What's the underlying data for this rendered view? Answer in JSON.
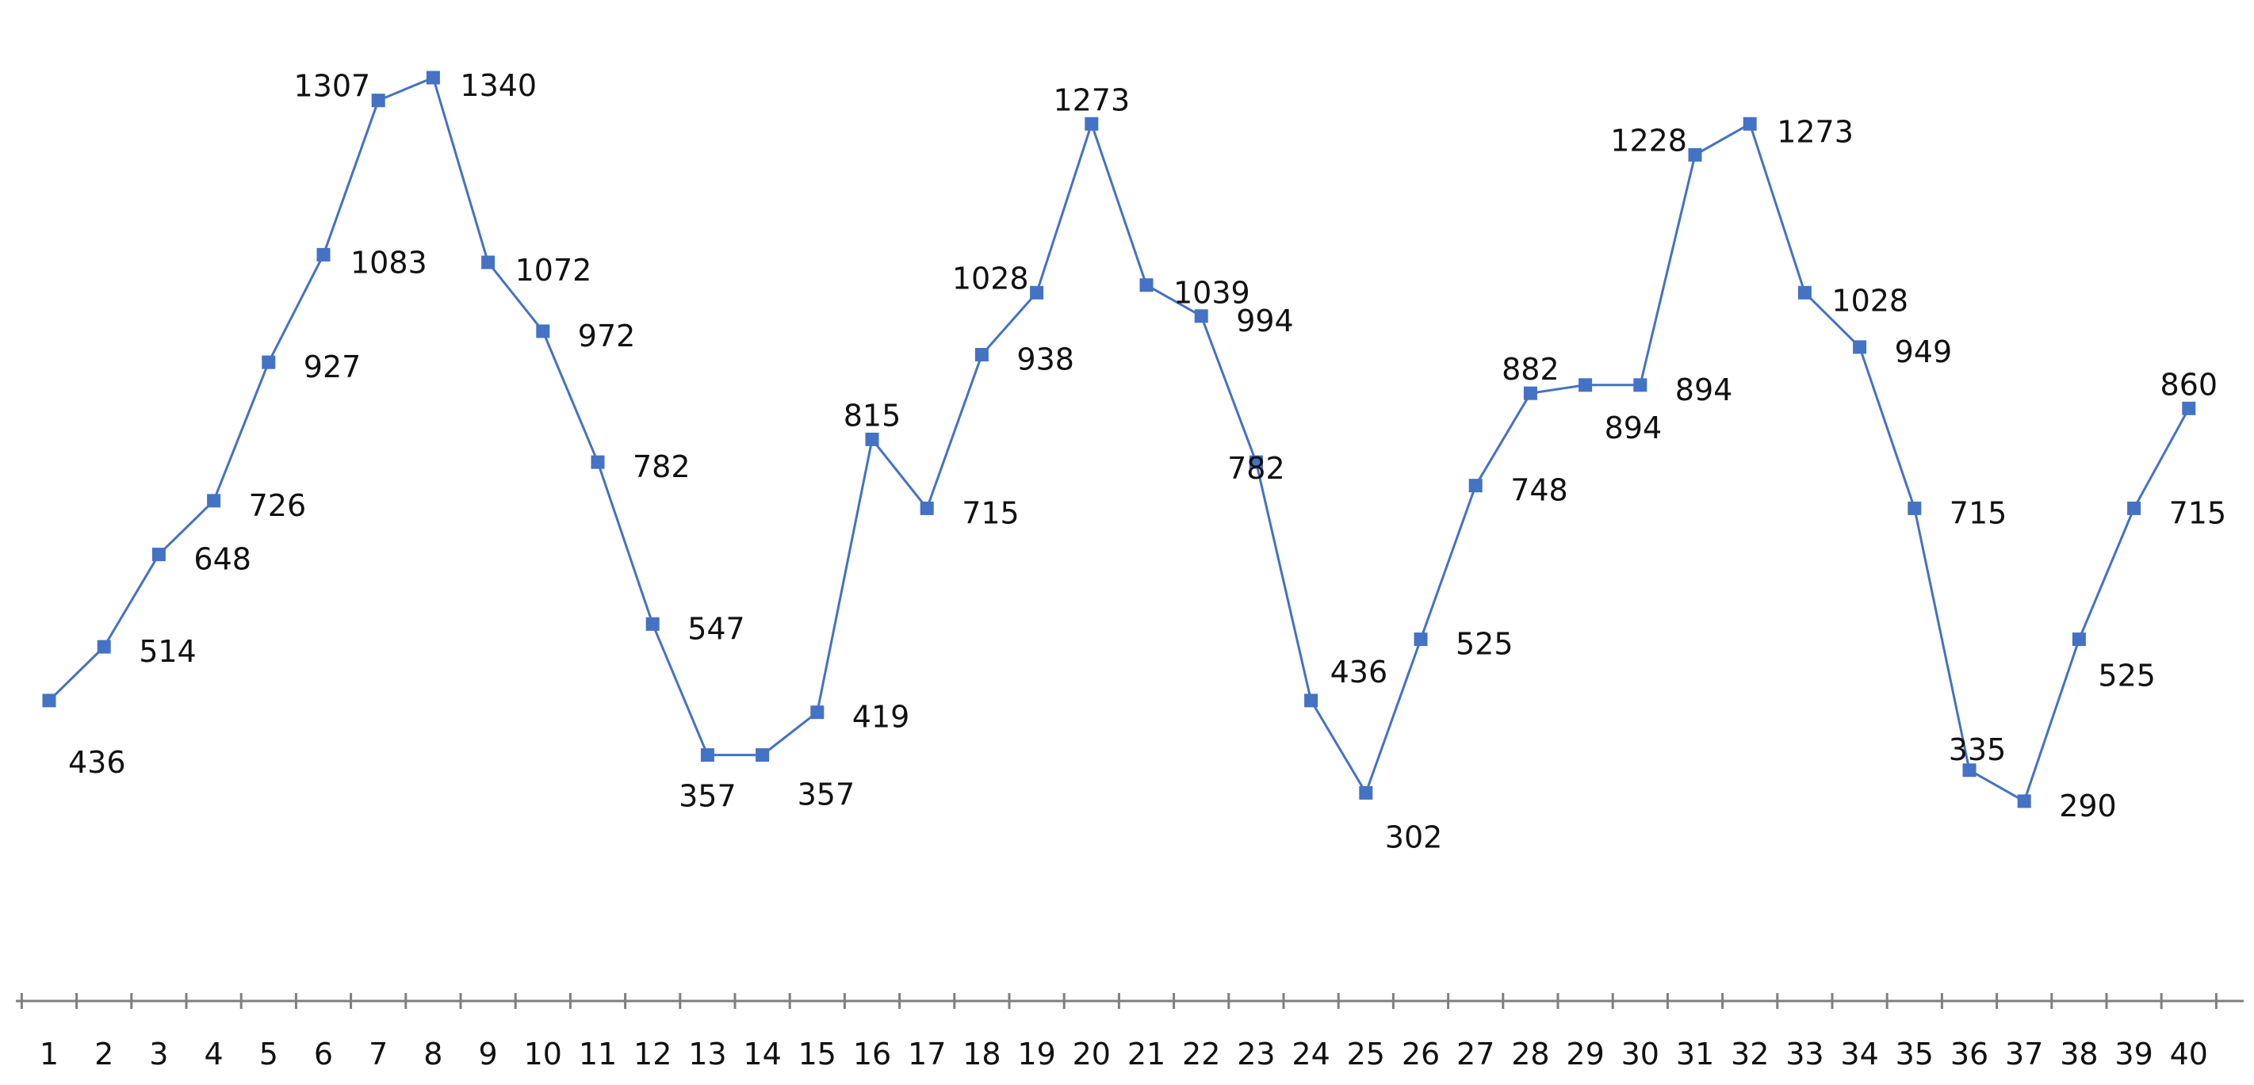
{
  "chart_data": {
    "type": "line",
    "title": "",
    "xlabel": "",
    "ylabel": "",
    "categories": [
      "1",
      "2",
      "3",
      "4",
      "5",
      "6",
      "7",
      "8",
      "9",
      "10",
      "11",
      "12",
      "13",
      "14",
      "15",
      "16",
      "17",
      "18",
      "19",
      "20",
      "21",
      "22",
      "23",
      "24",
      "25",
      "26",
      "27",
      "28",
      "29",
      "30",
      "31",
      "32",
      "33",
      "34",
      "35",
      "36",
      "37",
      "38",
      "39",
      "40"
    ],
    "series": [
      {
        "values": [
          436,
          514,
          648,
          726,
          927,
          1083,
          1307,
          1340,
          1072,
          972,
          782,
          547,
          357,
          357,
          419,
          815,
          715,
          938,
          1028,
          1273,
          1039,
          994,
          782,
          436,
          302,
          525,
          748,
          882,
          894,
          894,
          1228,
          1273,
          1028,
          949,
          715,
          335,
          290,
          525,
          715,
          860
        ]
      }
    ],
    "ylim": [
      0,
      1400
    ],
    "grid": false,
    "legend": "none",
    "colors": {
      "series": "#4472c4",
      "axis": "#7f7f7f"
    }
  }
}
